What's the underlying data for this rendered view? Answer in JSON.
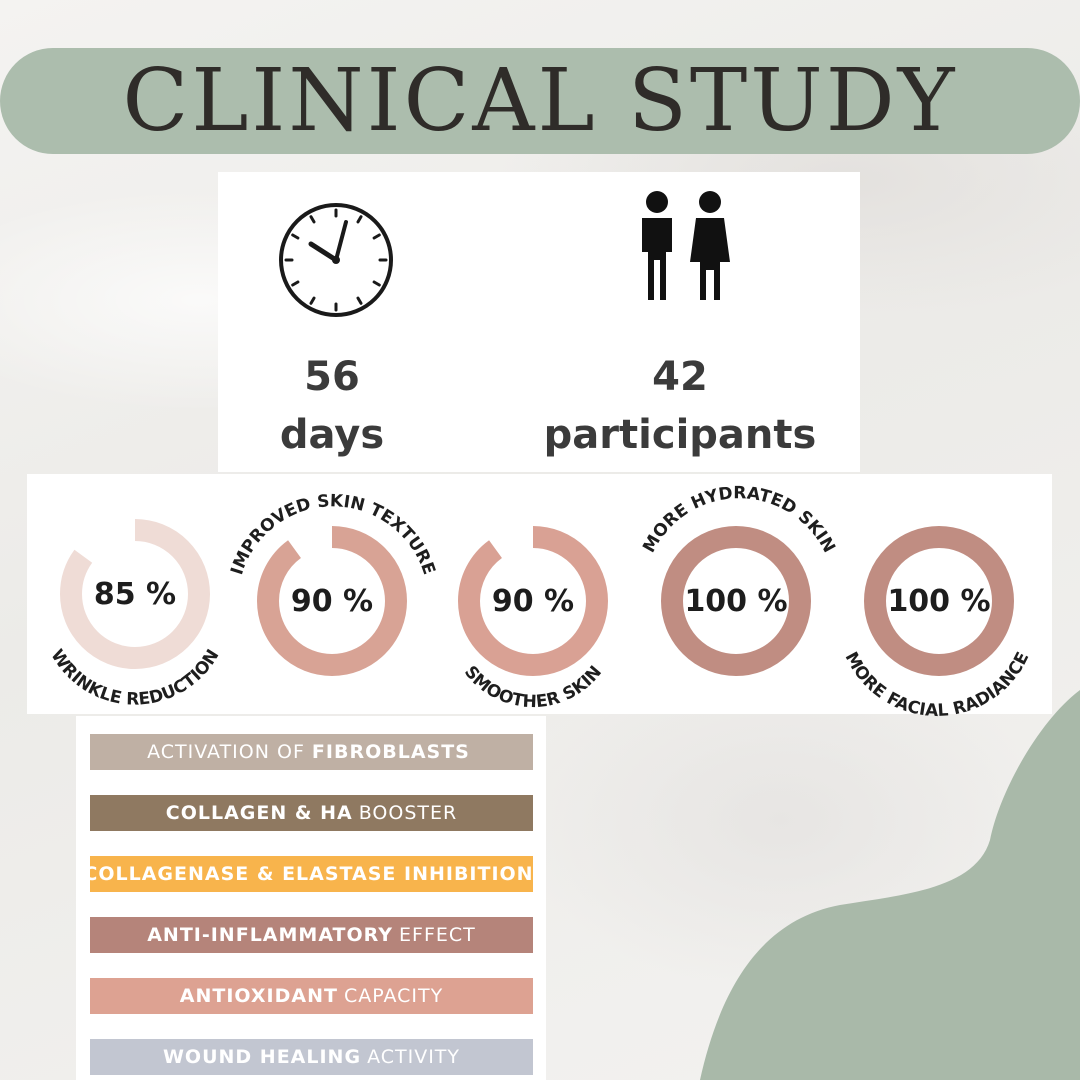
{
  "title": "CLINICAL STUDY",
  "colors": {
    "title_pill": "#acbdad",
    "accent_blob": "#a9b9a9",
    "gauge_track": "#ffffff"
  },
  "stats": [
    {
      "icon": "clock-icon",
      "value": "56",
      "label": "days"
    },
    {
      "icon": "people-icon",
      "value": "42",
      "label": "participants"
    }
  ],
  "results": [
    {
      "value": "85 %",
      "label": "WRINKLE REDUCTION",
      "percent": 85,
      "color": "#efdcd6"
    },
    {
      "value": "90 %",
      "label": "IMPROVED SKIN TEXTURE",
      "percent": 90,
      "color": "#d8a395"
    },
    {
      "value": "90 %",
      "label": "SMOOTHER SKIN",
      "percent": 90,
      "color": "#d9a194"
    },
    {
      "value": "100 %",
      "label": "MORE HYDRATED SKIN",
      "percent": 100,
      "color": "#c08d82"
    },
    {
      "value": "100 %",
      "label": "MORE FACIAL RADIANCE",
      "percent": 100,
      "color": "#c08d82"
    }
  ],
  "benefits": [
    {
      "pre": "ACTIVATION OF",
      "bold": "FIBROBLASTS",
      "post": "",
      "color": "#bfb0a4"
    },
    {
      "pre": "",
      "bold": "COLLAGEN & HA",
      "post": "BOOSTER",
      "color": "#8f7961"
    },
    {
      "pre": "",
      "bold": "COLLAGENASE & ELASTASE INHIBITION",
      "post": "",
      "color": "#f8b44c"
    },
    {
      "pre": "",
      "bold": "ANTI-INFLAMMATORY",
      "post": "EFFECT",
      "color": "#b5847a"
    },
    {
      "pre": "",
      "bold": "ANTIOXIDANT",
      "post": "CAPACITY",
      "color": "#dda292"
    },
    {
      "pre": "",
      "bold": "WOUND HEALING",
      "post": "ACTIVITY",
      "color": "#c2c6d1"
    }
  ]
}
